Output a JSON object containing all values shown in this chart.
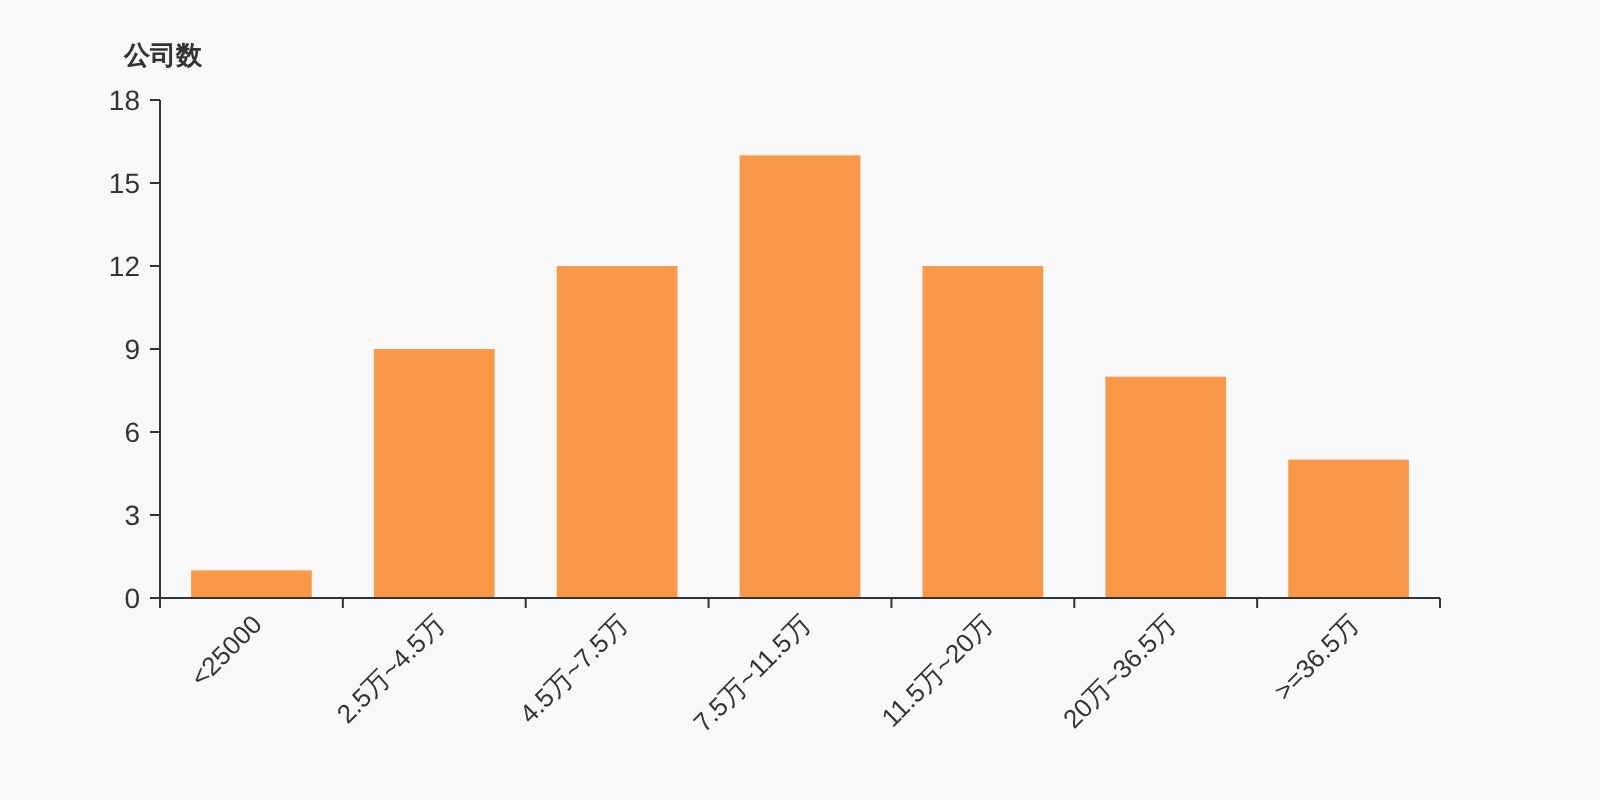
{
  "chart_data": {
    "type": "bar",
    "ylabel": "公司数",
    "categories": [
      "<25000",
      "2.5万~4.5万",
      "4.5万~7.5万",
      "7.5万~11.5万",
      "11.5万~20万",
      "20万~36.5万",
      ">=36.5万"
    ],
    "values": [
      1,
      9,
      12,
      16,
      12,
      8,
      5
    ],
    "color": "#f89848",
    "ylim": [
      0,
      18
    ],
    "yticks": [
      0,
      3,
      6,
      9,
      12,
      15,
      18
    ],
    "grid": false
  }
}
